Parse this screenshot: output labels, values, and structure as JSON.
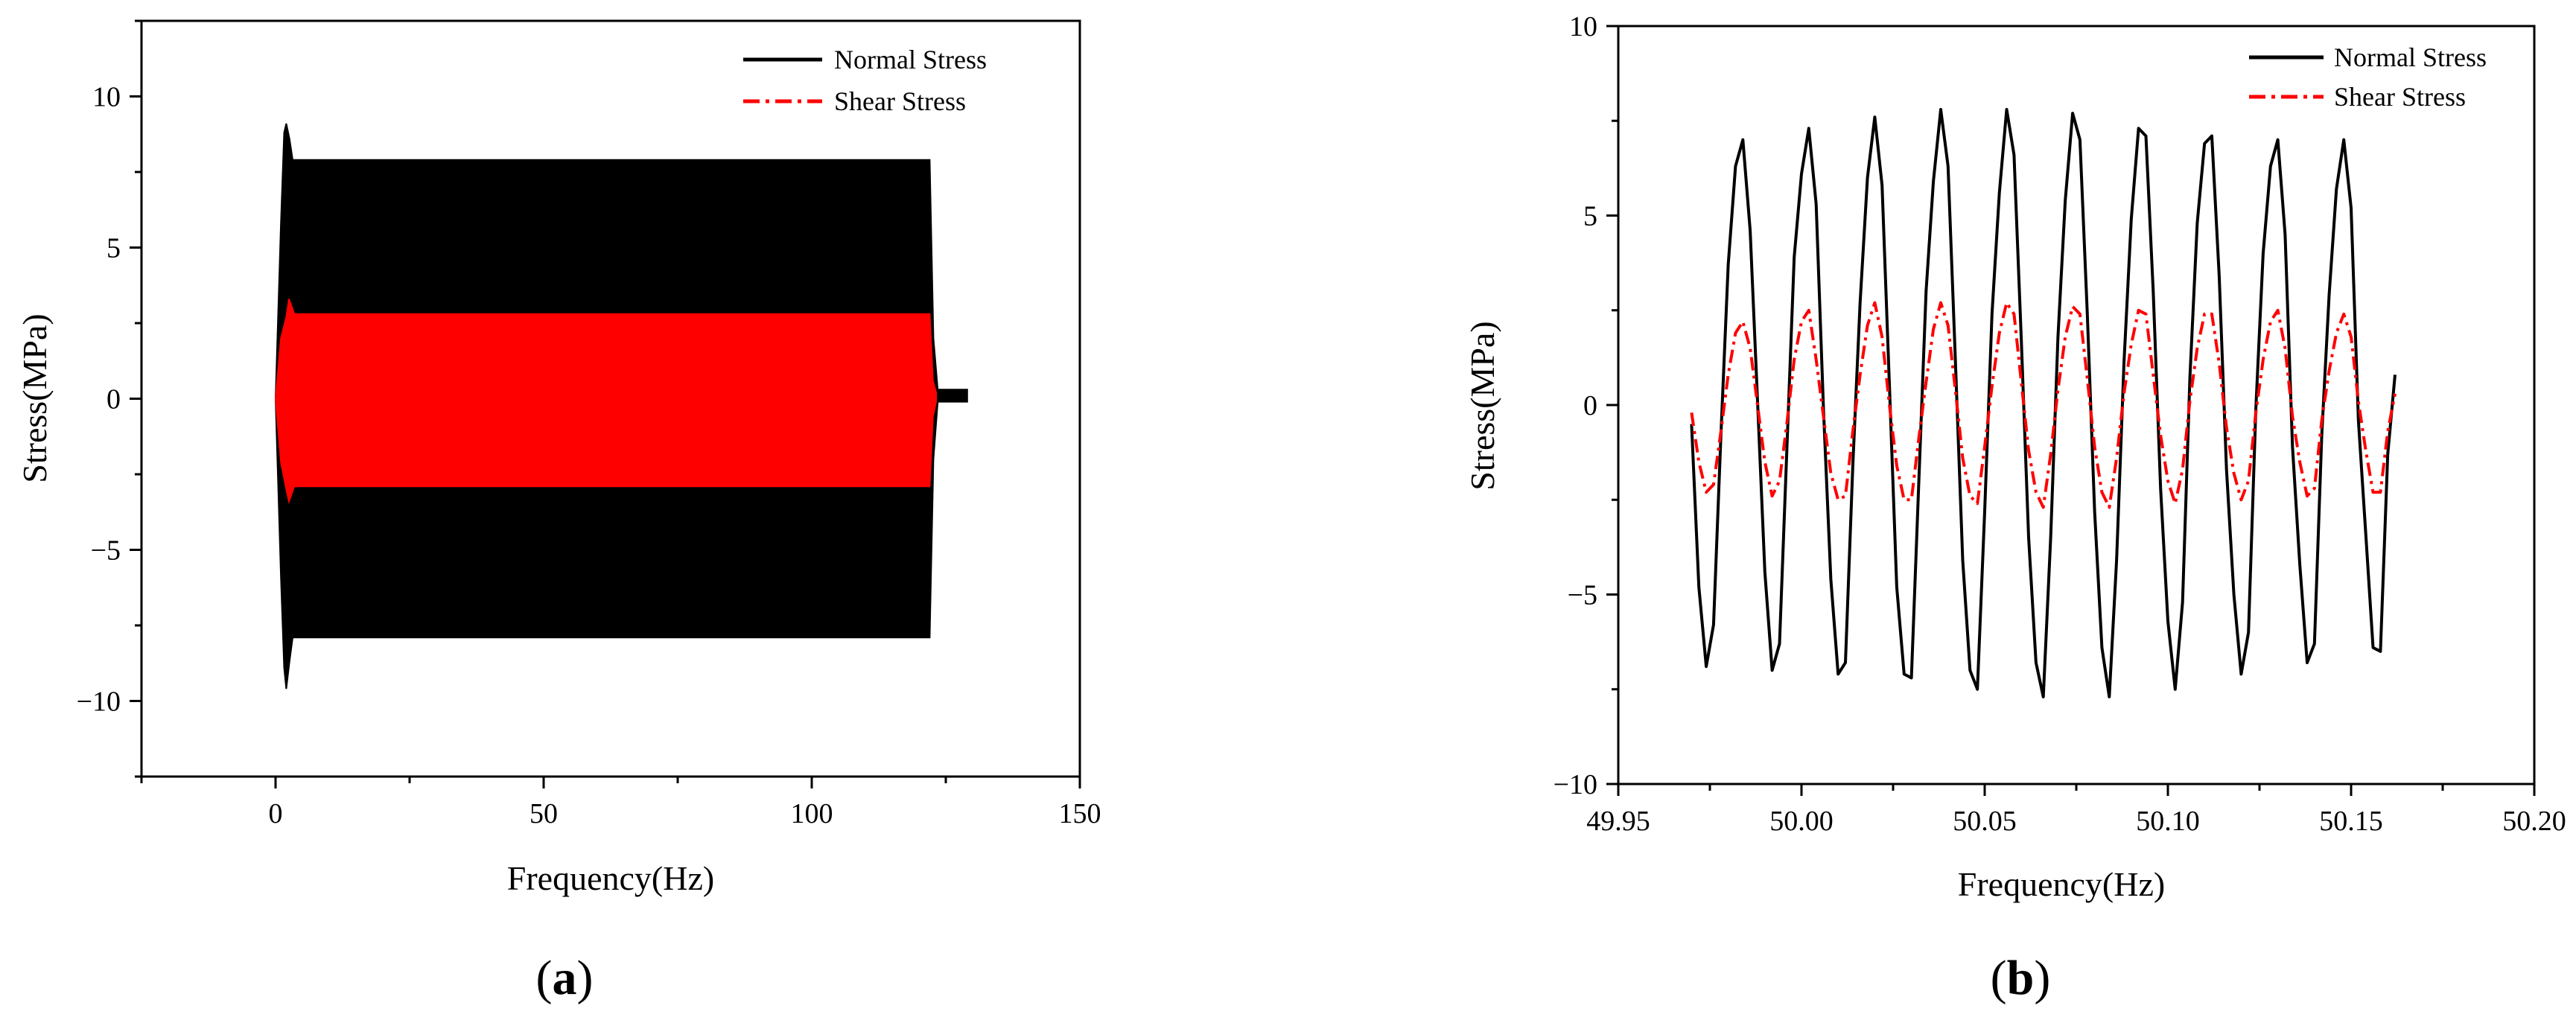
{
  "chart_data": [
    {
      "panel": "(a)",
      "panel_letter": "a",
      "type": "line",
      "title": "",
      "xlabel": "Frequency(Hz)",
      "ylabel": "Stress(MPa)",
      "xlim": [
        -25,
        150
      ],
      "ylim": [
        -12.5,
        12.5
      ],
      "xticks": [
        0,
        50,
        100,
        150
      ],
      "xtick_labels": [
        "0",
        "50",
        "100",
        "150"
      ],
      "yticks": [
        -10,
        -5,
        0,
        5,
        10
      ],
      "ytick_labels": [
        "−10",
        "−5",
        "0",
        "5",
        "10"
      ],
      "grid": false,
      "legend_position": "top-right",
      "series": [
        {
          "name": "Normal Stress",
          "color": "#000000",
          "line_style": "solid",
          "envelope": {
            "x": [
              0,
              1.0,
              1.6,
              2.0,
              2.6,
              3.2,
              5,
              122,
              122.7,
              123.5,
              129
            ],
            "upper": [
              0,
              5.8,
              8.8,
              9.1,
              8.6,
              7.9,
              7.9,
              7.9,
              2.0,
              0.3,
              0.3
            ],
            "lower": [
              0,
              -5.9,
              -8.9,
              -9.6,
              -8.7,
              -7.9,
              -7.9,
              -7.9,
              -2.0,
              -0.1,
              -0.1
            ]
          }
        },
        {
          "name": "Shear Stress",
          "color": "#ff0000",
          "line_style": "dash-dot",
          "envelope": {
            "x": [
              0,
              1.0,
              2.0,
              2.5,
              3.5,
              5,
              122,
              122.6,
              123.2
            ],
            "upper": [
              0,
              2.0,
              2.7,
              3.3,
              2.8,
              2.8,
              2.8,
              0.6,
              0.2
            ],
            "lower": [
              0,
              -2.1,
              -3.0,
              -3.4,
              -2.9,
              -2.9,
              -2.9,
              -0.6,
              -0.1
            ]
          }
        }
      ]
    },
    {
      "panel": "(b)",
      "panel_letter": "b",
      "type": "line",
      "title": "",
      "xlabel": "Frequency(Hz)",
      "ylabel": "Stress(MPa)",
      "xlim": [
        49.95,
        50.2
      ],
      "ylim": [
        -10,
        10
      ],
      "xticks": [
        49.95,
        50.0,
        50.05,
        50.1,
        50.15,
        50.2
      ],
      "xtick_labels": [
        "49.95",
        "50.00",
        "50.05",
        "50.10",
        "50.15",
        "50.20"
      ],
      "yticks": [
        -10,
        -5,
        0,
        5,
        10
      ],
      "ytick_labels": [
        "−10",
        "−5",
        "0",
        "5",
        "10"
      ],
      "grid": false,
      "legend_position": "top-right",
      "x_start": 49.97,
      "x_step": 0.00185,
      "series": [
        {
          "name": "Normal Stress",
          "color": "#000000",
          "line_style": "solid",
          "values": [
            -0.5,
            -4.8,
            -6.9,
            -5.8,
            -0.8,
            3.7,
            6.3,
            7.0,
            4.6,
            0.1,
            -4.4,
            -7.0,
            -6.3,
            -1.2,
            3.9,
            6.1,
            7.3,
            5.3,
            -0.1,
            -4.6,
            -7.1,
            -6.8,
            -1.6,
            2.7,
            6.0,
            7.6,
            5.8,
            0.5,
            -4.8,
            -7.1,
            -7.2,
            -2.1,
            3.0,
            5.9,
            7.8,
            6.3,
            1.2,
            -4.1,
            -7.0,
            -7.5,
            -2.8,
            2.4,
            5.6,
            7.8,
            6.6,
            1.7,
            -3.5,
            -6.8,
            -7.7,
            -3.5,
            1.8,
            5.4,
            7.7,
            7.0,
            2.4,
            -2.8,
            -6.4,
            -7.7,
            -4.1,
            1.1,
            4.9,
            7.3,
            7.1,
            3.0,
            -2.2,
            -5.7,
            -7.5,
            -5.2,
            0.7,
            4.8,
            6.9,
            7.1,
            3.4,
            -1.7,
            -5.0,
            -7.1,
            -6.0,
            -0.1,
            4.0,
            6.3,
            7.0,
            4.5,
            -1.1,
            -4.2,
            -6.8,
            -6.3,
            -0.8,
            2.9,
            5.7,
            7.0,
            5.2,
            -0.4,
            -3.4,
            -6.4,
            -6.5,
            -1.3,
            0.8
          ],
          "x_start": 49.97,
          "x_step": 0.002
        },
        {
          "name": "Shear Stress",
          "color": "#ff0000",
          "line_style": "dash-dot",
          "values": [
            -0.2,
            -1.5,
            -2.3,
            -2.1,
            -0.7,
            0.8,
            1.9,
            2.2,
            1.5,
            0.0,
            -1.5,
            -2.4,
            -2.0,
            -0.5,
            1.2,
            2.2,
            2.5,
            1.2,
            -0.3,
            -1.8,
            -2.5,
            -2.4,
            -0.7,
            0.8,
            2.1,
            2.7,
            1.8,
            0.0,
            -1.6,
            -2.5,
            -2.5,
            -0.9,
            0.6,
            2.0,
            2.7,
            2.1,
            0.4,
            -1.4,
            -2.4,
            -2.6,
            -1.1,
            0.5,
            1.9,
            2.7,
            2.4,
            0.6,
            -1.2,
            -2.3,
            -2.7,
            -1.3,
            0.4,
            1.8,
            2.6,
            2.4,
            0.7,
            -1.1,
            -2.3,
            -2.7,
            -1.4,
            0.3,
            1.6,
            2.5,
            2.4,
            0.8,
            -0.8,
            -2.0,
            -2.6,
            -1.7,
            0.1,
            1.5,
            2.4,
            2.4,
            1.1,
            -0.6,
            -1.8,
            -2.5,
            -2.0,
            -0.2,
            1.2,
            2.2,
            2.5,
            1.5,
            -0.3,
            -1.5,
            -2.4,
            -2.2,
            -0.4,
            0.9,
            1.9,
            2.4,
            1.8,
            0.1,
            -1.2,
            -2.3,
            -2.3,
            -0.7,
            0.3
          ],
          "x_start": 49.97,
          "x_step": 0.002
        }
      ]
    }
  ]
}
